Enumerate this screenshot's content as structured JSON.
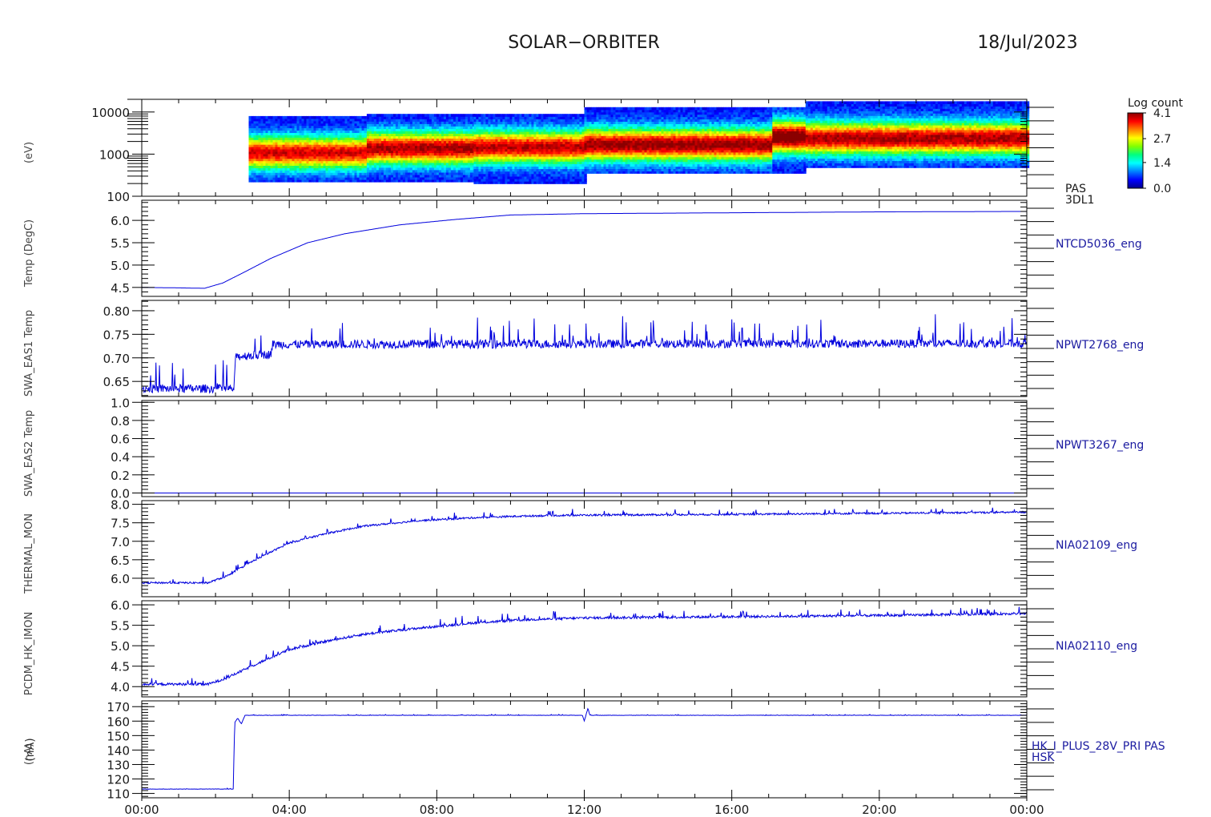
{
  "header": {
    "title": "SOLAR−ORBITER",
    "date": "18/Jul/2023"
  },
  "shared_ylabel": "(nA)",
  "x_axis": {
    "ticks": [
      "00:00",
      "04:00",
      "08:00",
      "12:00",
      "16:00",
      "20:00",
      "00:00"
    ],
    "range_hours": [
      0,
      24
    ]
  },
  "colorbar": {
    "title": "Log count",
    "ticks": [
      "4.1",
      "2.7",
      "1.4",
      "0.0"
    ],
    "range": [
      0.0,
      4.1
    ],
    "colors": [
      "#00008b",
      "#0000ff",
      "#0080ff",
      "#00ffff",
      "#00ff80",
      "#80ff00",
      "#ffff00",
      "#ff8000",
      "#ff0000",
      "#8b0000"
    ]
  },
  "colors": {
    "line": "#0000dd",
    "axis": "#000000",
    "label": "#1a1aa0"
  },
  "chart_data": [
    {
      "type": "heatmap",
      "name": "PAS 3DL1",
      "label_lines": [
        "PAS",
        "3DL1"
      ],
      "ylabel": "(eV)",
      "y_scale": "log",
      "ylim": [
        100,
        20000
      ],
      "y_ticks": [
        "10000",
        "1000",
        "100"
      ],
      "segments": [
        {
          "t": [
            2.9,
            6.1
          ],
          "e_range": [
            220,
            8000
          ],
          "peak_e": 1100,
          "peak_level": 3.3
        },
        {
          "t": [
            6.1,
            9.0
          ],
          "e_range": [
            220,
            9000
          ],
          "peak_e": 1400,
          "peak_level": 3.5
        },
        {
          "t": [
            9.0,
            12.0
          ],
          "e_range": [
            200,
            9000
          ],
          "peak_e": 1500,
          "peak_level": 3.4
        },
        {
          "t": [
            12.0,
            17.1
          ],
          "e_range": [
            350,
            13000
          ],
          "peak_e": 1700,
          "peak_level": 3.6
        },
        {
          "t": [
            17.1,
            18.0
          ],
          "e_range": [
            350,
            13000
          ],
          "peak_e": 2600,
          "peak_level": 3.9
        },
        {
          "t": [
            18.0,
            24.0
          ],
          "e_range": [
            480,
            18000
          ],
          "peak_e": 2400,
          "peak_level": 3.5
        }
      ]
    },
    {
      "type": "line",
      "name": "NTCD5036_eng",
      "label_lines": [
        "NTCD5036_eng"
      ],
      "ylabel": "Temp (DegC)",
      "ylim": [
        4.3,
        6.45
      ],
      "y_ticks": [
        "6.0",
        "5.5",
        "5.0",
        "4.5"
      ],
      "x": [
        0,
        1.0,
        1.7,
        2.2,
        2.8,
        3.5,
        4.5,
        5.5,
        7.0,
        8.5,
        10.0,
        12.0,
        16.0,
        20.0,
        24.0
      ],
      "values": [
        4.5,
        4.49,
        4.48,
        4.6,
        4.85,
        5.15,
        5.5,
        5.7,
        5.9,
        6.02,
        6.12,
        6.15,
        6.17,
        6.19,
        6.2
      ],
      "noise": 0.0
    },
    {
      "type": "line",
      "name": "NPWT2768_eng",
      "label_lines": [
        "NPWT2768_eng"
      ],
      "ylabel": "SWA_EAS1 Temp",
      "ylim": [
        0.618,
        0.822
      ],
      "y_ticks": [
        "0.80",
        "0.75",
        "0.70",
        "0.65"
      ],
      "x": [
        0,
        2.5,
        2.55,
        3.5,
        3.55,
        24.0
      ],
      "values": [
        0.632,
        0.632,
        0.7,
        0.705,
        0.726,
        0.728
      ],
      "noise": 0.018
    },
    {
      "type": "line",
      "name": "NPWT3267_eng",
      "label_lines": [
        "NPWT3267_eng"
      ],
      "ylabel": "SWA_EAS2 Temp",
      "ylim": [
        -0.04,
        1.02
      ],
      "y_ticks": [
        "1.0",
        "0.8",
        "0.6",
        "0.4",
        "0.2",
        "0.0"
      ],
      "x": [
        0,
        24.0
      ],
      "values": [
        0.0,
        0.0
      ],
      "noise": 0.0
    },
    {
      "type": "line",
      "name": "NIA02109_eng",
      "label_lines": [
        "NIA02109_eng"
      ],
      "ylabel": "THERMAL_MON",
      "ylim": [
        5.5,
        8.1
      ],
      "y_ticks": [
        "8.0",
        "7.5",
        "7.0",
        "6.5",
        "6.0"
      ],
      "x": [
        0,
        1.8,
        2.3,
        3.0,
        4.0,
        5.0,
        6.0,
        7.5,
        9.0,
        10.5,
        12.0,
        16.0,
        20.0,
        24.0
      ],
      "values": [
        5.87,
        5.87,
        6.05,
        6.45,
        6.95,
        7.2,
        7.4,
        7.55,
        7.63,
        7.68,
        7.7,
        7.72,
        7.75,
        7.78
      ],
      "noise": 0.05
    },
    {
      "type": "line",
      "name": "NIA02110_eng",
      "label_lines": [
        "NIA02110_eng"
      ],
      "ylabel": "PCDM_HK_IMON",
      "ylim": [
        3.75,
        6.1
      ],
      "y_ticks": [
        "6.0",
        "5.5",
        "5.0",
        "4.5",
        "4.0"
      ],
      "x": [
        0,
        1.8,
        2.3,
        3.0,
        4.0,
        5.0,
        6.0,
        7.5,
        9.0,
        10.5,
        12.0,
        16.0,
        20.0,
        24.0
      ],
      "values": [
        4.05,
        4.05,
        4.2,
        4.5,
        4.9,
        5.1,
        5.27,
        5.42,
        5.55,
        5.63,
        5.67,
        5.7,
        5.73,
        5.78
      ],
      "noise": 0.06
    },
    {
      "type": "line",
      "name": "HK_I_PLUS_28V_PRI PAS HSK",
      "label_lines": [
        "HK_I_PLUS_28V_PRI PAS",
        "HSK"
      ],
      "ylabel": "(nA)",
      "ylim": [
        107,
        174
      ],
      "y_ticks": [
        "170",
        "160",
        "150",
        "140",
        "130",
        "120",
        "110"
      ],
      "x": [
        0,
        2.48,
        2.52,
        2.6,
        2.7,
        2.8,
        11.95,
        12.0,
        12.1,
        12.15,
        24.0
      ],
      "values": [
        113,
        113,
        159,
        162,
        158,
        164,
        164,
        160,
        169,
        164,
        164
      ],
      "noise": 0.2
    }
  ]
}
